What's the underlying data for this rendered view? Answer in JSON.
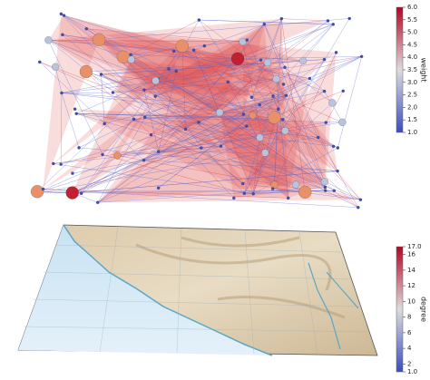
{
  "colorbars": [
    {
      "title": "weight",
      "range": [
        1,
        6
      ],
      "colors": [
        "#3b4cc0",
        "#dddcdc",
        "#b40426"
      ],
      "ticks": [
        {
          "value": 1,
          "label": "1.0"
        },
        {
          "value": 1.5,
          "label": "1.5"
        },
        {
          "value": 2,
          "label": "2.0"
        },
        {
          "value": 2.5,
          "label": "2.5"
        },
        {
          "value": 3,
          "label": "3.0"
        },
        {
          "value": 3.5,
          "label": "3.5"
        },
        {
          "value": 4,
          "label": "4.0"
        },
        {
          "value": 4.5,
          "label": "4.5"
        },
        {
          "value": 5,
          "label": "5.0"
        },
        {
          "value": 5.5,
          "label": "5.5"
        },
        {
          "value": 6,
          "label": "6.0"
        }
      ]
    },
    {
      "title": "degree",
      "range": [
        1,
        17
      ],
      "colors": [
        "#3b4cc0",
        "#dddcdc",
        "#b40426"
      ],
      "ticks": [
        {
          "value": 1,
          "label": "1.0"
        },
        2,
        4,
        6,
        8,
        10,
        12,
        14,
        16,
        {
          "value": 17,
          "label": "17.0"
        }
      ]
    }
  ]
}
